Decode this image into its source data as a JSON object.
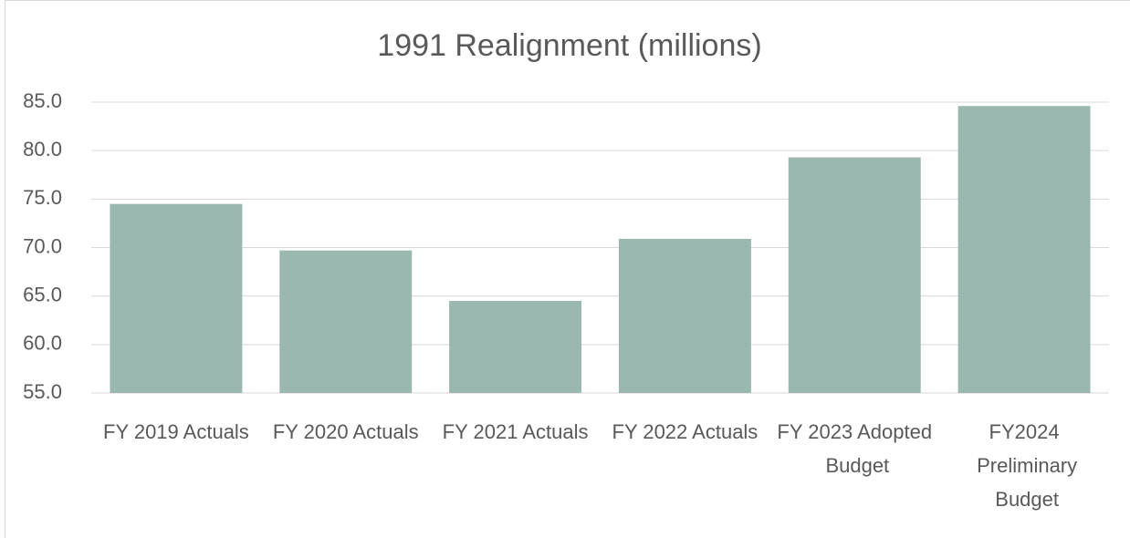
{
  "chart_data": {
    "type": "bar",
    "title": "1991 Realignment (millions)",
    "categories": [
      "FY 2019 Actuals",
      "FY 2020 Actuals",
      "FY 2021 Actuals",
      "FY 2022 Actuals",
      "FY 2023 Adopted Budget",
      "FY2024 Preliminary Budget"
    ],
    "values": [
      74.5,
      69.7,
      64.5,
      70.9,
      79.3,
      84.6
    ],
    "color": "#9bb8b0",
    "ylim": [
      55,
      85
    ],
    "yticks": [
      {
        "value": 55,
        "label": "55.0"
      },
      {
        "value": 60,
        "label": "60.0"
      },
      {
        "value": 65,
        "label": "65.0"
      },
      {
        "value": 70,
        "label": "70.0"
      },
      {
        "value": 75,
        "label": "75.0"
      },
      {
        "value": 80,
        "label": "80.0"
      },
      {
        "value": 85,
        "label": "85.0"
      }
    ],
    "grid": true
  }
}
